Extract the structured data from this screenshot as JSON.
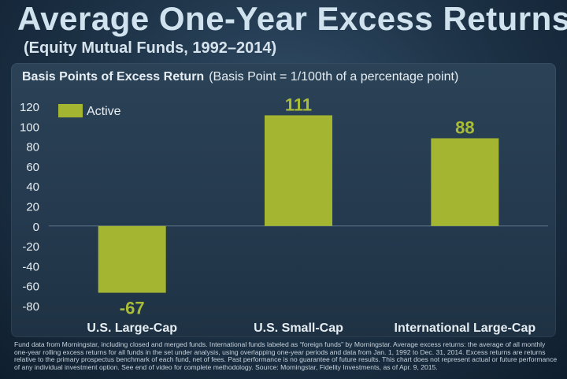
{
  "title": "Average One-Year Excess Returns",
  "subtitle": "(Equity Mutual Funds, 1992–2014)",
  "panel": {
    "header_bold": "Basis Points of Excess Return",
    "header_light": "(Basis Point = 1/100th of a percentage point)"
  },
  "chart_data": {
    "type": "bar",
    "categories": [
      "U.S. Large-Cap",
      "U.S. Small-Cap",
      "International Large-Cap"
    ],
    "series": [
      {
        "name": "Active",
        "values": [
          -67,
          111,
          88
        ]
      }
    ],
    "data_labels": [
      "-67",
      "111",
      "88"
    ],
    "ylim": [
      -80,
      120
    ],
    "yticks": [
      120,
      100,
      80,
      60,
      40,
      20,
      0,
      -20,
      -40,
      -60,
      -80
    ],
    "legend": "top-left",
    "grid": false,
    "bar_color": "#a4b532",
    "label_color": "#a9bd36"
  },
  "footnote": "Fund data from Morningstar, including closed and merged funds. International funds labeled as “foreign funds” by Morningstar. Average excess returns: the average of all monthly one-year rolling excess returns for all funds in the set under analysis, using overlapping one-year periods and data from Jan. 1, 1992 to Dec. 31, 2014. Excess returns are returns relative to the primary prospectus benchmark of each fund, net of fees. Past performance is no guarantee of future results. This chart does not represent actual or future performance of any individual investment option. See end of video for complete methodology. Source: Morningstar, Fidelity Investments, as of Apr. 9, 2015."
}
